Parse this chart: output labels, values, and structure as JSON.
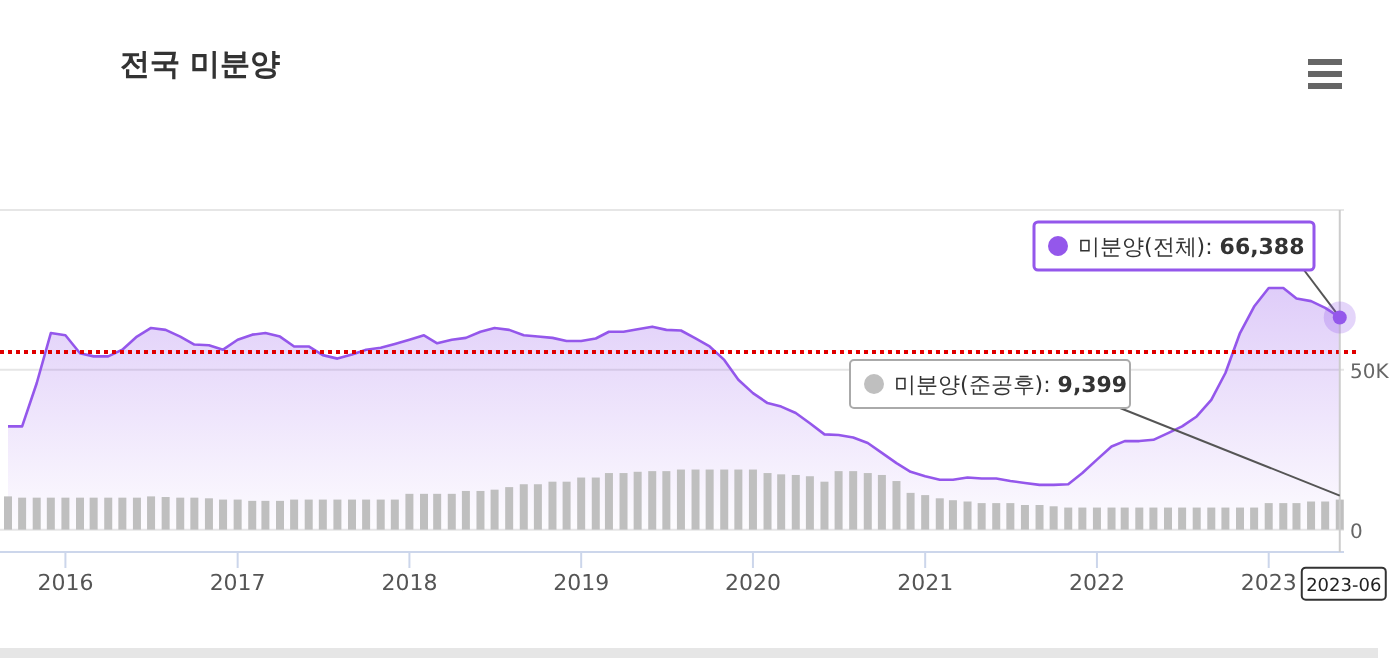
{
  "chart_data": {
    "type": "area",
    "title": "전국 미분양",
    "x": [
      "2015-09",
      "2015-10",
      "2015-11",
      "2015-12",
      "2016-01",
      "2016-02",
      "2016-03",
      "2016-04",
      "2016-05",
      "2016-06",
      "2016-07",
      "2016-08",
      "2016-09",
      "2016-10",
      "2016-11",
      "2016-12",
      "2017-01",
      "2017-02",
      "2017-03",
      "2017-04",
      "2017-05",
      "2017-06",
      "2017-07",
      "2017-08",
      "2017-09",
      "2017-10",
      "2017-11",
      "2017-12",
      "2018-01",
      "2018-02",
      "2018-03",
      "2018-04",
      "2018-05",
      "2018-06",
      "2018-07",
      "2018-08",
      "2018-09",
      "2018-10",
      "2018-11",
      "2018-12",
      "2019-01",
      "2019-02",
      "2019-03",
      "2019-04",
      "2019-05",
      "2019-06",
      "2019-07",
      "2019-08",
      "2019-09",
      "2019-10",
      "2019-11",
      "2019-12",
      "2020-01",
      "2020-02",
      "2020-03",
      "2020-04",
      "2020-05",
      "2020-06",
      "2020-07",
      "2020-08",
      "2020-09",
      "2020-10",
      "2020-11",
      "2020-12",
      "2021-01",
      "2021-02",
      "2021-03",
      "2021-04",
      "2021-05",
      "2021-06",
      "2021-07",
      "2021-08",
      "2021-09",
      "2021-10",
      "2021-11",
      "2021-12",
      "2022-01",
      "2022-02",
      "2022-03",
      "2022-04",
      "2022-05",
      "2022-06",
      "2022-07",
      "2022-08",
      "2022-09",
      "2022-10",
      "2022-11",
      "2022-12",
      "2023-01",
      "2023-02",
      "2023-03",
      "2023-04",
      "2023-05",
      "2023-06"
    ],
    "series": [
      {
        "name": "미분양(전체):",
        "color": "#9457eb",
        "values": [
          32300,
          32300,
          45800,
          61500,
          60800,
          55200,
          54200,
          54200,
          56300,
          60400,
          63100,
          62500,
          60400,
          57900,
          57700,
          56300,
          59400,
          61000,
          61500,
          60400,
          57300,
          57300,
          54600,
          53500,
          54800,
          56300,
          56900,
          58100,
          59400,
          60800,
          58300,
          59400,
          60000,
          61900,
          63100,
          62500,
          60800,
          60400,
          60000,
          59000,
          59000,
          59800,
          61900,
          61900,
          62700,
          63500,
          62500,
          62300,
          59800,
          57300,
          53100,
          46900,
          42700,
          39600,
          38500,
          36500,
          33300,
          29800,
          29600,
          28800,
          27100,
          24000,
          20800,
          18100,
          16700,
          15600,
          15600,
          16300,
          16000,
          16000,
          15200,
          14600,
          14000,
          14000,
          14200,
          17700,
          21900,
          26000,
          27700,
          27700,
          28100,
          30200,
          32300,
          35400,
          40600,
          49000,
          61500,
          69800,
          75600,
          75600,
          72300,
          71500,
          69400,
          66388
        ],
        "value_labels": [
          null,
          null,
          null,
          null,
          null,
          null,
          null,
          null,
          null,
          null,
          null,
          null,
          null,
          null,
          null,
          null,
          null,
          null,
          null,
          null,
          null,
          null,
          null,
          null,
          null,
          null,
          null,
          null,
          null,
          null,
          null,
          null,
          null,
          null,
          null,
          null,
          null,
          null,
          null,
          null,
          null,
          null,
          null,
          null,
          null,
          null,
          null,
          null,
          null,
          null,
          null,
          null,
          null,
          null,
          null,
          null,
          null,
          null,
          null,
          null,
          null,
          null,
          null,
          null,
          null,
          null,
          null,
          null,
          null,
          null,
          null,
          null,
          null,
          null,
          null,
          null,
          null,
          null,
          null,
          null,
          null,
          null,
          null,
          null,
          null,
          null,
          null,
          null,
          null,
          null,
          null,
          null,
          null,
          "66,388"
        ]
      },
      {
        "name": "미분양(준공후):",
        "type": "bar",
        "color": "#bfbfbf",
        "values": [
          10400,
          10000,
          10000,
          10000,
          10000,
          10000,
          10000,
          10000,
          10000,
          10000,
          10400,
          10200,
          10000,
          10000,
          9800,
          9400,
          9400,
          9000,
          9000,
          9000,
          9400,
          9400,
          9400,
          9400,
          9400,
          9400,
          9400,
          9400,
          11200,
          11200,
          11200,
          11200,
          12100,
          12100,
          12500,
          13300,
          14200,
          14200,
          15000,
          15000,
          16300,
          16300,
          17700,
          17700,
          18100,
          18300,
          18300,
          18800,
          18800,
          18800,
          18800,
          18800,
          18800,
          17700,
          17300,
          17100,
          16700,
          15000,
          18300,
          18300,
          17700,
          17100,
          15200,
          11500,
          10800,
          9800,
          9200,
          8800,
          8300,
          8300,
          8300,
          7700,
          7700,
          7300,
          6900,
          6900,
          6900,
          6900,
          6900,
          6900,
          6900,
          6900,
          6900,
          6900,
          6900,
          6900,
          6900,
          6900,
          8300,
          8300,
          8300,
          8800,
          8800,
          9399
        ],
        "value_labels": [
          null,
          null,
          null,
          null,
          null,
          null,
          null,
          null,
          null,
          null,
          null,
          null,
          null,
          null,
          null,
          null,
          null,
          null,
          null,
          null,
          null,
          null,
          null,
          null,
          null,
          null,
          null,
          null,
          null,
          null,
          null,
          null,
          null,
          null,
          null,
          null,
          null,
          null,
          null,
          null,
          null,
          null,
          null,
          null,
          null,
          null,
          null,
          null,
          null,
          null,
          null,
          null,
          null,
          null,
          null,
          null,
          null,
          null,
          null,
          null,
          null,
          null,
          null,
          null,
          null,
          null,
          null,
          null,
          null,
          null,
          null,
          null,
          null,
          null,
          null,
          null,
          null,
          null,
          null,
          null,
          null,
          null,
          null,
          null,
          null,
          null,
          null,
          null,
          null,
          null,
          null,
          null,
          null,
          "9,399"
        ]
      }
    ],
    "xlim": [
      "2015-08-15",
      "2023-06-10"
    ],
    "xticks": [
      {
        "value": "2016-01",
        "label": "2016"
      },
      {
        "value": "2017-01",
        "label": "2017"
      },
      {
        "value": "2018-01",
        "label": "2018"
      },
      {
        "value": "2019-01",
        "label": "2019"
      },
      {
        "value": "2020-01",
        "label": "2020"
      },
      {
        "value": "2021-01",
        "label": "2021"
      },
      {
        "value": "2022-01",
        "label": "2022"
      },
      {
        "value": "2023-01",
        "label": "2023"
      }
    ],
    "ylim": [
      -7000,
      100000
    ],
    "yticks": [
      {
        "value": 0,
        "label": "0"
      },
      {
        "value": 50000,
        "label": "50K"
      },
      {
        "value": 100000,
        "label": null
      }
    ],
    "grid": "y",
    "ref_lines": [
      {
        "axis": "y",
        "value": 55600,
        "color": "#e00000",
        "line_style": "dotted"
      }
    ],
    "annotations": [
      {
        "text": "2023-06",
        "x": "2023-06",
        "y": 0
      }
    ],
    "legend": "top right"
  }
}
